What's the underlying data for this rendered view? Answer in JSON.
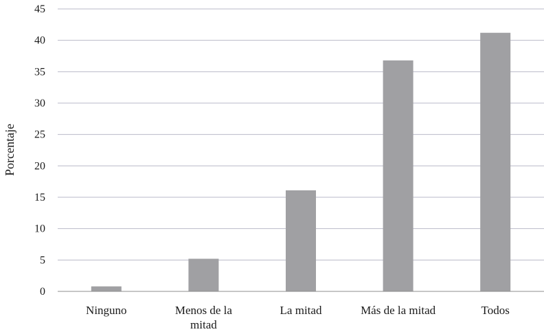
{
  "chart_data": {
    "type": "bar",
    "categories": [
      "Ninguno",
      "Menos de la mitad",
      "La mitad",
      "Más de la mitad",
      "Todos"
    ],
    "category_lines": [
      [
        "Ninguno"
      ],
      [
        "Menos de la",
        "mitad"
      ],
      [
        "La mitad"
      ],
      [
        "Más de la mitad"
      ],
      [
        "Todos"
      ]
    ],
    "values": [
      0.8,
      5.2,
      16.1,
      36.8,
      41.2
    ],
    "ylabel": "Porcentaje",
    "xlabel": "",
    "ylim": [
      0,
      45
    ],
    "yticks": [
      0,
      5,
      10,
      15,
      20,
      25,
      30,
      35,
      40,
      45
    ],
    "grid": true,
    "bar_color": "#a0a0a3",
    "grid_color": "#b9b9c8",
    "axis_color": "#8c8c8c"
  }
}
